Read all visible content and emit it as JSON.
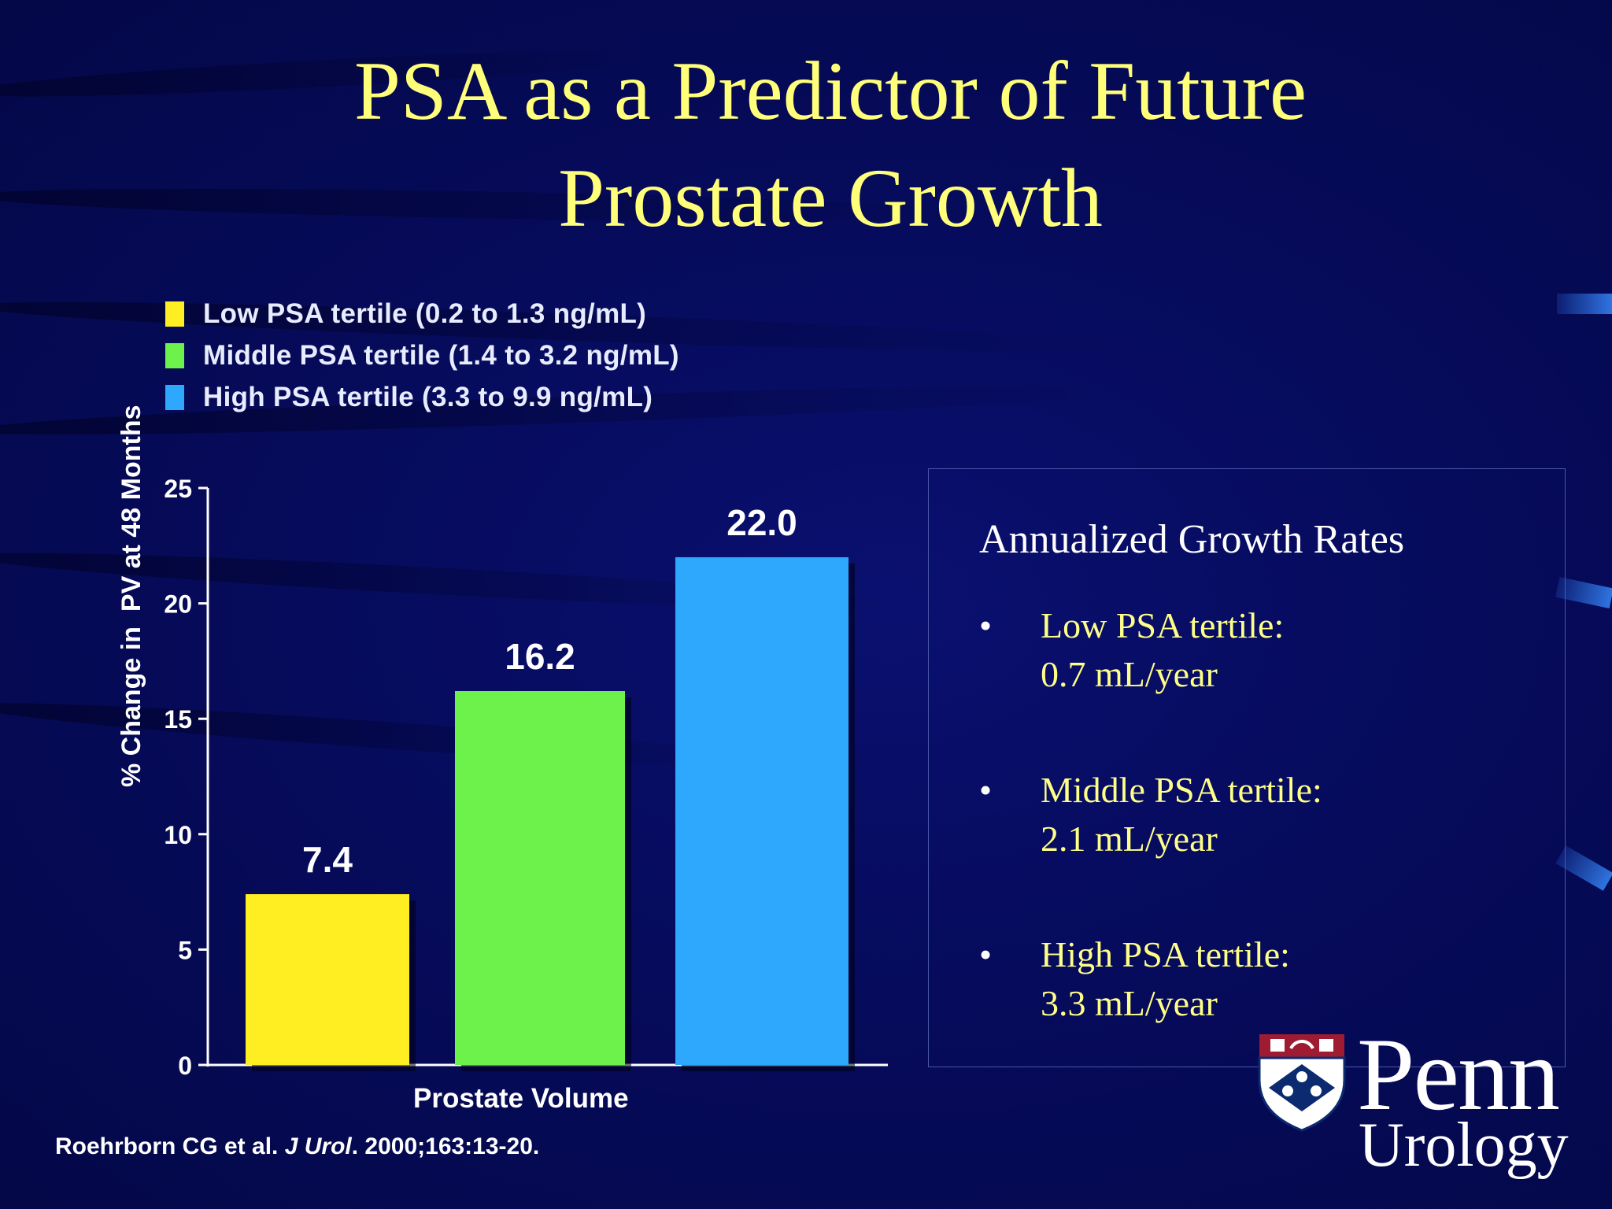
{
  "slide": {
    "title_line1": "PSA as a Predictor of Future",
    "title_line2": "Prostate Growth",
    "citation_authors": "Roehrborn CG et al.",
    "citation_journal": "J Urol",
    "citation_details": ". 2000;163:13-20."
  },
  "panel": {
    "title": "Annualized Growth Rates",
    "bullet_char": "•",
    "bullets": [
      {
        "line1": "Low PSA tertile:",
        "line2": "0.7 mL/year"
      },
      {
        "line1": "Middle PSA tertile:",
        "line2": "2.1 mL/year"
      },
      {
        "line1": "High PSA tertile:",
        "line2": "3.3 mL/year"
      }
    ]
  },
  "logo": {
    "name": "Penn",
    "department": "Urology"
  },
  "chart_data": {
    "type": "bar",
    "title": "",
    "xlabel": "Prostate Volume",
    "ylabel": "% Change in  PV at 48 Months",
    "ylim": [
      0,
      25
    ],
    "yticks": [
      0,
      5,
      10,
      15,
      20,
      25
    ],
    "grid": false,
    "legend_position": "top-left",
    "categories": [
      "Prostate Volume"
    ],
    "series": [
      {
        "name": "Low PSA tertile (0.2 to 1.3 ng/mL)",
        "values": [
          7.4
        ],
        "label": "7.4",
        "color": "#ffee22"
      },
      {
        "name": "Middle PSA tertile (1.4 to 3.2 ng/mL)",
        "values": [
          16.2
        ],
        "label": "16.2",
        "color": "#6cf24a"
      },
      {
        "name": "High PSA tertile (3.3 to 9.9 ng/mL)",
        "values": [
          22.0
        ],
        "label": "22.0",
        "color": "#2ea8fc"
      }
    ]
  }
}
